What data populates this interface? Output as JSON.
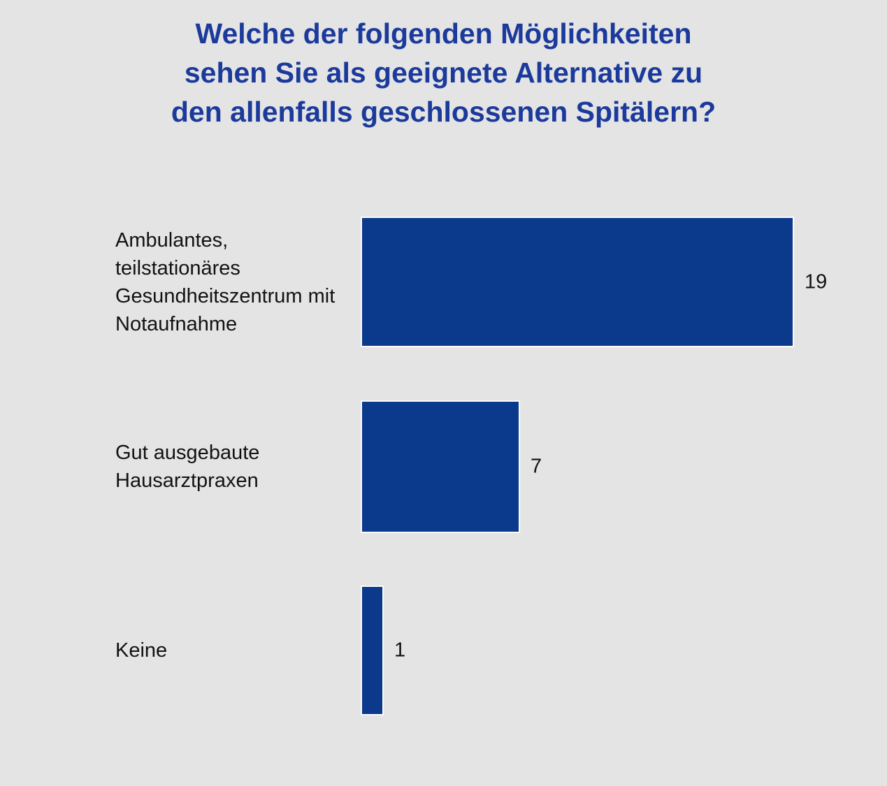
{
  "title_lines": [
    "Welche der folgenden Möglichkeiten",
    "sehen Sie als geeignete Alternative zu",
    "den allenfalls geschlossenen Spitälern?"
  ],
  "chart_data": {
    "type": "bar",
    "orientation": "horizontal",
    "title": "Welche der folgenden Möglichkeiten sehen Sie als geeignete Alternative zu den allenfalls geschlossenen Spitälern?",
    "categories": [
      "Ambulantes, teilstationäres Gesundheitszentrum mit Notaufnahme",
      "Gut ausgebaute Hausarztpraxen",
      "Keine"
    ],
    "values": [
      19,
      7,
      1
    ],
    "data_labels": [
      "19",
      "7",
      "1"
    ],
    "xlim": [
      0,
      19
    ],
    "grid": false,
    "legend": false,
    "axis_ticks_visible": false,
    "colors": {
      "bar": "#0b3a8d",
      "bar_outline": "#fafafa",
      "title_text": "#1b3a9b",
      "label_text": "#121212",
      "background": "#e4e4e4"
    }
  }
}
